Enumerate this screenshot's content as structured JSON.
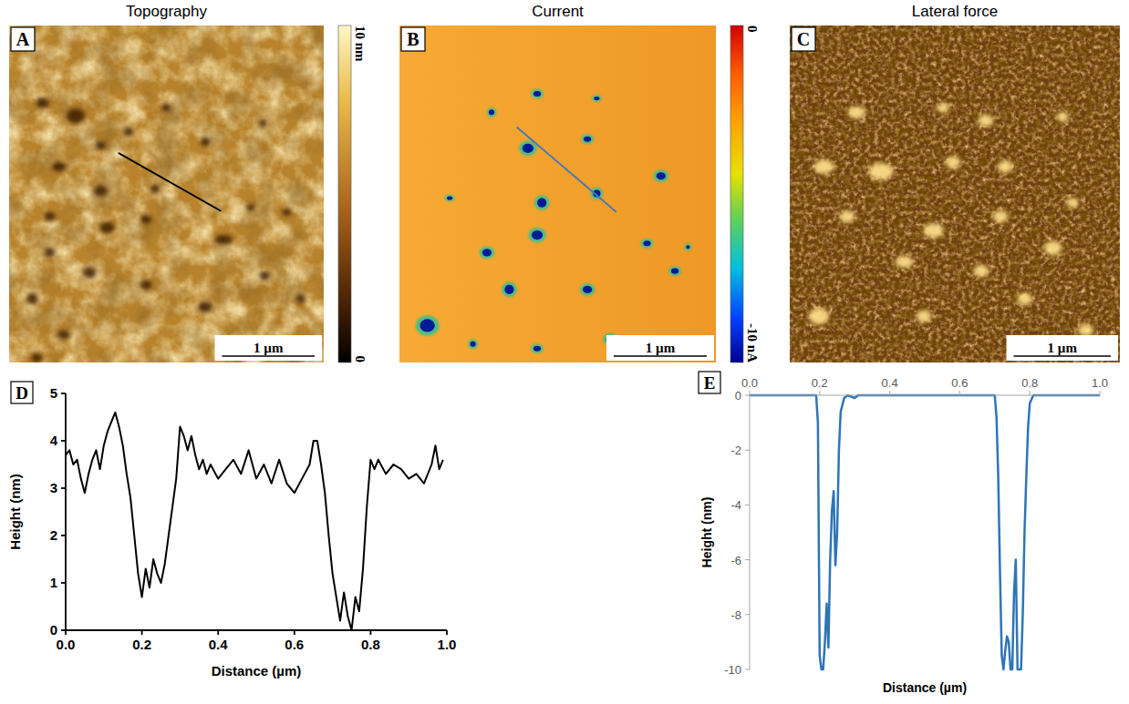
{
  "images": [
    {
      "title": "Topography",
      "panel": "A",
      "width_um": 3.4,
      "height_um": 3.65,
      "scale_bar": {
        "value": 1,
        "label": "1 µm"
      },
      "colorbar": {
        "range": [
          0,
          10
        ],
        "ticks": [
          {
            "value": 10,
            "label": "10 nm"
          },
          0
        ]
      },
      "profile": [
        [
          1.18,
          1.38
        ],
        [
          2.29,
          2.01
        ]
      ],
      "spots": [
        [
          0.36,
          0.84,
          0.07,
          0.06
        ],
        [
          0.72,
          0.98,
          0.1,
          0.08
        ],
        [
          0.99,
          1.3,
          0.06,
          0.05
        ],
        [
          1.29,
          1.15,
          0.05,
          0.05
        ],
        [
          1.7,
          0.89,
          0.05,
          0.04
        ],
        [
          2.12,
          1.26,
          0.05,
          0.05
        ],
        [
          2.74,
          1.06,
          0.04,
          0.04
        ],
        [
          0.54,
          1.53,
          0.08,
          0.05
        ],
        [
          0.99,
          1.79,
          0.07,
          0.06
        ],
        [
          1.58,
          1.77,
          0.05,
          0.05
        ],
        [
          0.44,
          2.07,
          0.06,
          0.05
        ],
        [
          1.06,
          2.19,
          0.08,
          0.06
        ],
        [
          1.48,
          2.1,
          0.06,
          0.05
        ],
        [
          2.32,
          2.32,
          0.1,
          0.05
        ],
        [
          2.61,
          1.97,
          0.05,
          0.04
        ],
        [
          3.0,
          2.02,
          0.05,
          0.04
        ],
        [
          0.44,
          2.46,
          0.06,
          0.05
        ],
        [
          0.25,
          2.96,
          0.06,
          0.06
        ],
        [
          0.87,
          2.68,
          0.07,
          0.06
        ],
        [
          1.48,
          2.81,
          0.06,
          0.05
        ],
        [
          2.12,
          3.05,
          0.08,
          0.06
        ],
        [
          2.76,
          2.71,
          0.06,
          0.05
        ],
        [
          3.15,
          2.96,
          0.05,
          0.05
        ],
        [
          0.59,
          3.35,
          0.07,
          0.05
        ],
        [
          0.3,
          3.6,
          0.06,
          0.05
        ]
      ]
    },
    {
      "title": "Current",
      "panel": "B",
      "width_um": 3.4,
      "height_um": 3.65,
      "scale_bar": {
        "value": 1,
        "label": "1 µm"
      },
      "colorbar": {
        "range": [
          -10,
          0
        ],
        "ticks": [
          0,
          {
            "value": -10,
            "label": "-10 nA"
          }
        ]
      },
      "profile": [
        [
          1.26,
          1.1
        ],
        [
          2.33,
          2.02
        ]
      ],
      "spots": [
        [
          1.48,
          0.74,
          0.04,
          0.03
        ],
        [
          0.99,
          0.94,
          0.03,
          0.03
        ],
        [
          2.12,
          0.79,
          0.03,
          0.02
        ],
        [
          1.38,
          1.33,
          0.06,
          0.05
        ],
        [
          2.02,
          1.23,
          0.04,
          0.03
        ],
        [
          2.81,
          1.63,
          0.05,
          0.04
        ],
        [
          0.54,
          1.87,
          0.03,
          0.02
        ],
        [
          1.53,
          1.92,
          0.05,
          0.05
        ],
        [
          2.12,
          1.82,
          0.04,
          0.04
        ],
        [
          0.94,
          2.46,
          0.05,
          0.04
        ],
        [
          1.48,
          2.27,
          0.06,
          0.05
        ],
        [
          2.66,
          2.36,
          0.04,
          0.03
        ],
        [
          1.18,
          2.86,
          0.05,
          0.05
        ],
        [
          2.02,
          2.86,
          0.05,
          0.04
        ],
        [
          2.96,
          2.66,
          0.04,
          0.03
        ],
        [
          0.3,
          3.25,
          0.08,
          0.07
        ],
        [
          0.79,
          3.45,
          0.03,
          0.03
        ],
        [
          1.48,
          3.5,
          0.04,
          0.03
        ],
        [
          2.27,
          3.4,
          0.05,
          0.04
        ],
        [
          3.1,
          2.4,
          0.02,
          0.02
        ]
      ]
    },
    {
      "title": "Lateral force",
      "panel": "C",
      "width_um": 3.4,
      "height_um": 3.65,
      "scale_bar": {
        "value": 1,
        "label": "1 µm"
      },
      "spots": [
        [
          0.69,
          0.94,
          0.07,
          0.05
        ],
        [
          1.58,
          0.89,
          0.05,
          0.04
        ],
        [
          2.02,
          1.03,
          0.06,
          0.05
        ],
        [
          2.81,
          0.99,
          0.05,
          0.04
        ],
        [
          0.35,
          1.53,
          0.08,
          0.06
        ],
        [
          0.94,
          1.58,
          0.1,
          0.07
        ],
        [
          1.68,
          1.48,
          0.06,
          0.05
        ],
        [
          2.22,
          1.53,
          0.06,
          0.05
        ],
        [
          0.59,
          2.07,
          0.06,
          0.05
        ],
        [
          1.48,
          2.22,
          0.08,
          0.06
        ],
        [
          2.17,
          2.07,
          0.06,
          0.05
        ],
        [
          2.91,
          1.92,
          0.05,
          0.04
        ],
        [
          1.18,
          2.56,
          0.07,
          0.05
        ],
        [
          1.97,
          2.66,
          0.06,
          0.05
        ],
        [
          2.71,
          2.41,
          0.07,
          0.06
        ],
        [
          0.3,
          3.15,
          0.08,
          0.07
        ],
        [
          1.38,
          3.15,
          0.06,
          0.05
        ],
        [
          2.42,
          2.96,
          0.06,
          0.05
        ],
        [
          3.05,
          3.3,
          0.06,
          0.05
        ]
      ]
    }
  ],
  "chart_data": [
    {
      "type": "line",
      "panel": "D",
      "xlabel": "Distance (µm)",
      "ylabel": "Height (nm)",
      "xlim": [
        0,
        1
      ],
      "ylim": [
        0,
        5
      ],
      "xticks": [
        {
          "value": 0,
          "label": "0.0"
        },
        0.2,
        0.4,
        0.6,
        0.8,
        {
          "value": 1,
          "label": "1.0"
        }
      ],
      "yticks": [
        0,
        1,
        2,
        3,
        4,
        5
      ],
      "x": [
        0,
        0.01,
        0.02,
        0.03,
        0.04,
        0.05,
        0.06,
        0.07,
        0.08,
        0.09,
        0.1,
        0.11,
        0.12,
        0.13,
        0.14,
        0.15,
        0.16,
        0.17,
        0.18,
        0.19,
        0.2,
        0.21,
        0.22,
        0.23,
        0.24,
        0.25,
        0.26,
        0.27,
        0.28,
        0.29,
        0.3,
        0.31,
        0.32,
        0.33,
        0.34,
        0.35,
        0.36,
        0.37,
        0.38,
        0.4,
        0.42,
        0.44,
        0.46,
        0.48,
        0.5,
        0.52,
        0.54,
        0.56,
        0.58,
        0.6,
        0.62,
        0.64,
        0.65,
        0.66,
        0.67,
        0.68,
        0.69,
        0.7,
        0.71,
        0.72,
        0.73,
        0.74,
        0.75,
        0.76,
        0.77,
        0.78,
        0.79,
        0.8,
        0.81,
        0.82,
        0.84,
        0.86,
        0.88,
        0.9,
        0.92,
        0.94,
        0.96,
        0.97,
        0.98,
        0.99
      ],
      "series": [
        {
          "color": "#000000",
          "values": [
            3.7,
            3.8,
            3.5,
            3.6,
            3.2,
            2.9,
            3.3,
            3.6,
            3.8,
            3.4,
            3.9,
            4.2,
            4.4,
            4.6,
            4.3,
            3.9,
            3.3,
            2.8,
            2.0,
            1.2,
            0.7,
            1.3,
            0.9,
            1.5,
            1.2,
            1.0,
            1.4,
            2.0,
            2.6,
            3.2,
            4.3,
            4.1,
            3.8,
            4.1,
            3.7,
            3.4,
            3.6,
            3.3,
            3.5,
            3.2,
            3.4,
            3.6,
            3.3,
            3.8,
            3.2,
            3.5,
            3.1,
            3.6,
            3.1,
            2.9,
            3.2,
            3.5,
            4.0,
            4.0,
            3.5,
            2.9,
            2.0,
            1.2,
            0.7,
            0.2,
            0.8,
            0.3,
            0.0,
            0.7,
            0.4,
            1.3,
            2.6,
            3.6,
            3.4,
            3.6,
            3.3,
            3.5,
            3.4,
            3.2,
            3.3,
            3.1,
            3.5,
            3.9,
            3.4,
            3.6
          ]
        }
      ]
    },
    {
      "type": "line",
      "panel": "E",
      "xlabel": "Distance (µm)",
      "ylabel": "Height (nm)",
      "xlim": [
        0,
        1
      ],
      "ylim": [
        -10,
        0
      ],
      "xticks": [
        {
          "value": 0,
          "label": "0.0"
        },
        0.2,
        0.4,
        0.6,
        0.8,
        {
          "value": 1,
          "label": "1.0"
        }
      ],
      "yticks": [
        0,
        -2,
        -4,
        -6,
        -8,
        -10
      ],
      "x": [
        0,
        0.05,
        0.1,
        0.15,
        0.19,
        0.195,
        0.2,
        0.205,
        0.21,
        0.215,
        0.22,
        0.225,
        0.23,
        0.235,
        0.24,
        0.245,
        0.25,
        0.255,
        0.26,
        0.27,
        0.28,
        0.3,
        0.31,
        0.4,
        0.5,
        0.6,
        0.7,
        0.705,
        0.71,
        0.715,
        0.72,
        0.725,
        0.73,
        0.735,
        0.74,
        0.745,
        0.75,
        0.755,
        0.76,
        0.765,
        0.77,
        0.775,
        0.78,
        0.785,
        0.79,
        0.795,
        0.8,
        0.81,
        0.9,
        1.0
      ],
      "series": [
        {
          "color": "#2e75b6",
          "values": [
            0,
            0,
            0,
            0,
            0,
            -1,
            -9.5,
            -10,
            -10,
            -9,
            -7.6,
            -9.2,
            -6,
            -4.2,
            -3.5,
            -6.2,
            -5,
            -2,
            -0.6,
            -0.1,
            0,
            -0.1,
            0,
            0,
            0,
            0,
            0,
            -0.8,
            -3,
            -6.5,
            -9.5,
            -10,
            -9.3,
            -8.8,
            -9,
            -10,
            -10,
            -7.2,
            -6,
            -10,
            -10,
            -10,
            -8,
            -5,
            -3,
            -1.2,
            -0.3,
            0,
            0,
            0
          ]
        }
      ]
    }
  ]
}
